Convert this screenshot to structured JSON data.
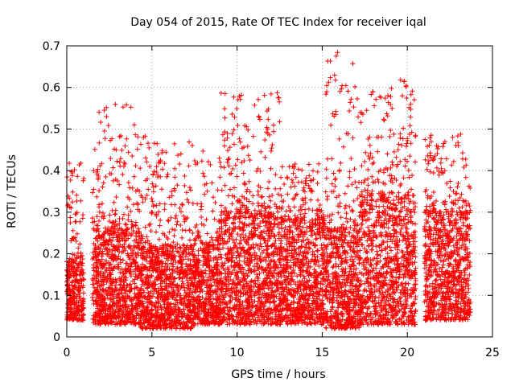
{
  "chart_data": {
    "type": "scatter",
    "title": "Day 054 of 2015, Rate Of TEC Index for receiver iqal",
    "xlabel": "GPS time / hours",
    "ylabel": "ROTI / TECUs",
    "xlim": [
      0,
      25
    ],
    "ylim": [
      0,
      0.7
    ],
    "xticks": [
      0,
      5,
      10,
      15,
      20,
      25
    ],
    "yticks": [
      0,
      0.1,
      0.2,
      0.3,
      0.4,
      0.5,
      0.6,
      0.7
    ],
    "xtick_labels": [
      "0",
      "5",
      "10",
      "15",
      "20",
      "25"
    ],
    "ytick_labels": [
      "0",
      "0.1",
      "0.2",
      "0.3",
      "0.4",
      "0.5",
      "0.6",
      "0.7"
    ],
    "grid": true,
    "marker": "+",
    "color": "#ff0000",
    "series": [
      {
        "name": "ROTI",
        "clusters": [
          {
            "x": [
              0.0,
              1.0
            ],
            "base": [
              0.04,
              0.2
            ],
            "peak": 0.42
          },
          {
            "x": [
              1.5,
              4.3
            ],
            "base": [
              0.03,
              0.26
            ],
            "peak": 0.56
          },
          {
            "x": [
              4.3,
              7.5
            ],
            "base": [
              0.02,
              0.22
            ],
            "peak": 0.48
          },
          {
            "x": [
              7.5,
              9.0
            ],
            "base": [
              0.03,
              0.22
            ],
            "peak": 0.45
          },
          {
            "x": [
              9.0,
              12.5
            ],
            "base": [
              0.03,
              0.3
            ],
            "peak": 0.59
          },
          {
            "x": [
              12.5,
              15.2
            ],
            "base": [
              0.03,
              0.28
            ],
            "peak": 0.42
          },
          {
            "x": [
              15.2,
              17.2
            ],
            "base": [
              0.02,
              0.26
            ],
            "peak": 0.68
          },
          {
            "x": [
              17.2,
              20.5
            ],
            "base": [
              0.03,
              0.34
            ],
            "peak": 0.62
          },
          {
            "x": [
              21.0,
              23.7
            ],
            "base": [
              0.04,
              0.3
            ],
            "peak": 0.49
          }
        ],
        "highlights": [
          {
            "x": 9.3,
            "y": 0.585
          },
          {
            "x": 15.9,
            "y": 0.684
          },
          {
            "x": 19.6,
            "y": 0.618
          },
          {
            "x": 19.8,
            "y": 0.614
          },
          {
            "x": 3.5,
            "y": 0.558
          },
          {
            "x": 20.2,
            "y": 0.56
          },
          {
            "x": 2.2,
            "y": 0.545
          },
          {
            "x": 15.8,
            "y": 0.535
          },
          {
            "x": 16.7,
            "y": 0.572
          },
          {
            "x": 21.4,
            "y": 0.485
          },
          {
            "x": 4.6,
            "y": 0.483
          },
          {
            "x": 17.7,
            "y": 0.476
          },
          {
            "x": 2.9,
            "y": 0.45
          },
          {
            "x": 10.3,
            "y": 0.454
          },
          {
            "x": 23.0,
            "y": 0.46
          },
          {
            "x": 6.7,
            "y": 0.44
          },
          {
            "x": 8.0,
            "y": 0.447
          },
          {
            "x": 12.0,
            "y": 0.447
          }
        ]
      }
    ]
  }
}
